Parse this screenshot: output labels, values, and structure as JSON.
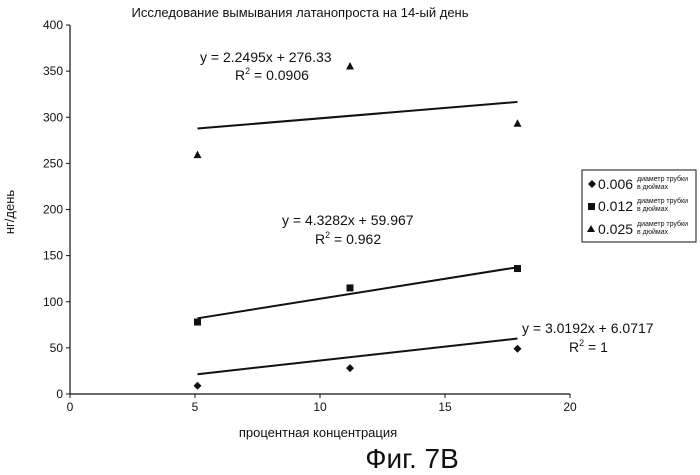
{
  "chart_data": {
    "type": "scatter",
    "title": "Исследование вымывания латанопроста на 14-ый день",
    "xlabel": "процентная концентрация",
    "ylabel": "нг/день",
    "xlim": [
      0,
      20
    ],
    "ylim": [
      0,
      400
    ],
    "x_ticks": [
      "0",
      "5",
      "10",
      "15",
      "20"
    ],
    "y_ticks": [
      "0",
      "50",
      "100",
      "150",
      "200",
      "250",
      "300",
      "350",
      "400"
    ],
    "grid": false,
    "legend_placement": "right",
    "series": [
      {
        "name": "0.006",
        "name_note": [
          "диаметр трубки",
          "в дюймах"
        ],
        "marker": "diamond",
        "x": [
          5.1,
          11.2,
          17.9
        ],
        "y": [
          9,
          28,
          49
        ],
        "trendline": {
          "slope": 3.0192,
          "intercept": 6.0717
        },
        "equation": "y = 3.0192x + 6.0717",
        "r2_prefix": "R",
        "r2_value": " = 1"
      },
      {
        "name": "0.012",
        "name_note": [
          "диаметр трубки",
          "в дюймах"
        ],
        "marker": "square",
        "x": [
          5.1,
          11.2,
          17.9
        ],
        "y": [
          78,
          115,
          136
        ],
        "trendline": {
          "slope": 4.3282,
          "intercept": 59.967
        },
        "equation": "y = 4.3282x + 59.967",
        "r2_prefix": "R",
        "r2_value": " = 0.962"
      },
      {
        "name": "0.025",
        "name_note": [
          "диаметр трубки",
          "в дюймах"
        ],
        "marker": "triangle",
        "x": [
          5.1,
          11.2,
          17.9
        ],
        "y": [
          259,
          355,
          293
        ],
        "trendline": {
          "slope": 2.2495,
          "intercept": 276.33
        },
        "equation": "y = 2.2495x + 276.33",
        "r2_prefix": "R",
        "r2_value": " = 0.0906"
      }
    ]
  },
  "figure_label": "Фиг. 7В"
}
